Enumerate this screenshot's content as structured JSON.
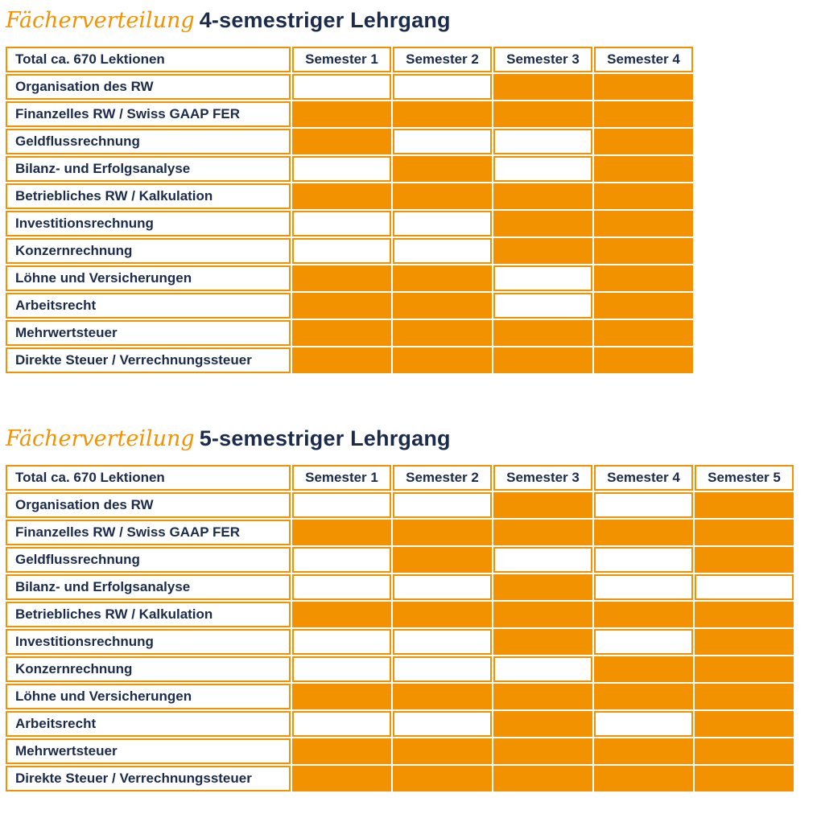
{
  "colors": {
    "orange": "#F39200",
    "navy": "#1B2B4B",
    "white": "#FFFFFF"
  },
  "tables": [
    {
      "title_italic": "Fächerverteilung",
      "title_bold": "4-semestriger Lehrgang",
      "header": {
        "label": "Total ca. 670 Lektionen",
        "columns": [
          "Semester 1",
          "Semester 2",
          "Semester 3",
          "Semester 4"
        ]
      },
      "rows": [
        {
          "label": "Organisation des RW",
          "cells": [
            0,
            0,
            1,
            1
          ]
        },
        {
          "label": "Finanzelles RW / Swiss GAAP FER",
          "cells": [
            1,
            1,
            1,
            1
          ]
        },
        {
          "label": "Geldflussrechnung",
          "cells": [
            1,
            0,
            0,
            1
          ]
        },
        {
          "label": "Bilanz- und Erfolgsanalyse",
          "cells": [
            0,
            1,
            0,
            1
          ]
        },
        {
          "label": "Betriebliches RW / Kalkulation",
          "cells": [
            1,
            1,
            1,
            1
          ]
        },
        {
          "label": "Investitionsrechnung",
          "cells": [
            0,
            0,
            1,
            1
          ]
        },
        {
          "label": "Konzernrechnung",
          "cells": [
            0,
            0,
            1,
            1
          ]
        },
        {
          "label": "Löhne und Versicherungen",
          "cells": [
            1,
            1,
            0,
            1
          ]
        },
        {
          "label": "Arbeitsrecht",
          "cells": [
            1,
            1,
            0,
            1
          ]
        },
        {
          "label": "Mehrwertsteuer",
          "cells": [
            1,
            1,
            1,
            1
          ]
        },
        {
          "label": "Direkte Steuer / Verrechnungssteuer",
          "cells": [
            1,
            1,
            1,
            1
          ]
        }
      ]
    },
    {
      "title_italic": "Fächerverteilung",
      "title_bold": "5-semestriger Lehrgang",
      "header": {
        "label": "Total ca. 670 Lektionen",
        "columns": [
          "Semester 1",
          "Semester 2",
          "Semester 3",
          "Semester 4",
          "Semester 5"
        ]
      },
      "rows": [
        {
          "label": "Organisation des RW",
          "cells": [
            0,
            0,
            1,
            0,
            1
          ]
        },
        {
          "label": "Finanzelles RW / Swiss GAAP FER",
          "cells": [
            1,
            1,
            1,
            1,
            1
          ]
        },
        {
          "label": "Geldflussrechnung",
          "cells": [
            0,
            1,
            0,
            0,
            1
          ]
        },
        {
          "label": "Bilanz- und Erfolgsanalyse",
          "cells": [
            0,
            0,
            1,
            0,
            0
          ]
        },
        {
          "label": "Betriebliches RW / Kalkulation",
          "cells": [
            1,
            1,
            1,
            1,
            1
          ]
        },
        {
          "label": "Investitionsrechnung",
          "cells": [
            0,
            0,
            1,
            0,
            1
          ]
        },
        {
          "label": "Konzernrechnung",
          "cells": [
            0,
            0,
            0,
            1,
            1
          ]
        },
        {
          "label": "Löhne und Versicherungen",
          "cells": [
            1,
            1,
            1,
            1,
            1
          ]
        },
        {
          "label": "Arbeitsrecht",
          "cells": [
            0,
            0,
            1,
            0,
            1
          ]
        },
        {
          "label": "Mehrwertsteuer",
          "cells": [
            1,
            1,
            1,
            1,
            1
          ]
        },
        {
          "label": "Direkte Steuer / Verrechnungssteuer",
          "cells": [
            1,
            1,
            1,
            1,
            1
          ]
        }
      ]
    }
  ]
}
